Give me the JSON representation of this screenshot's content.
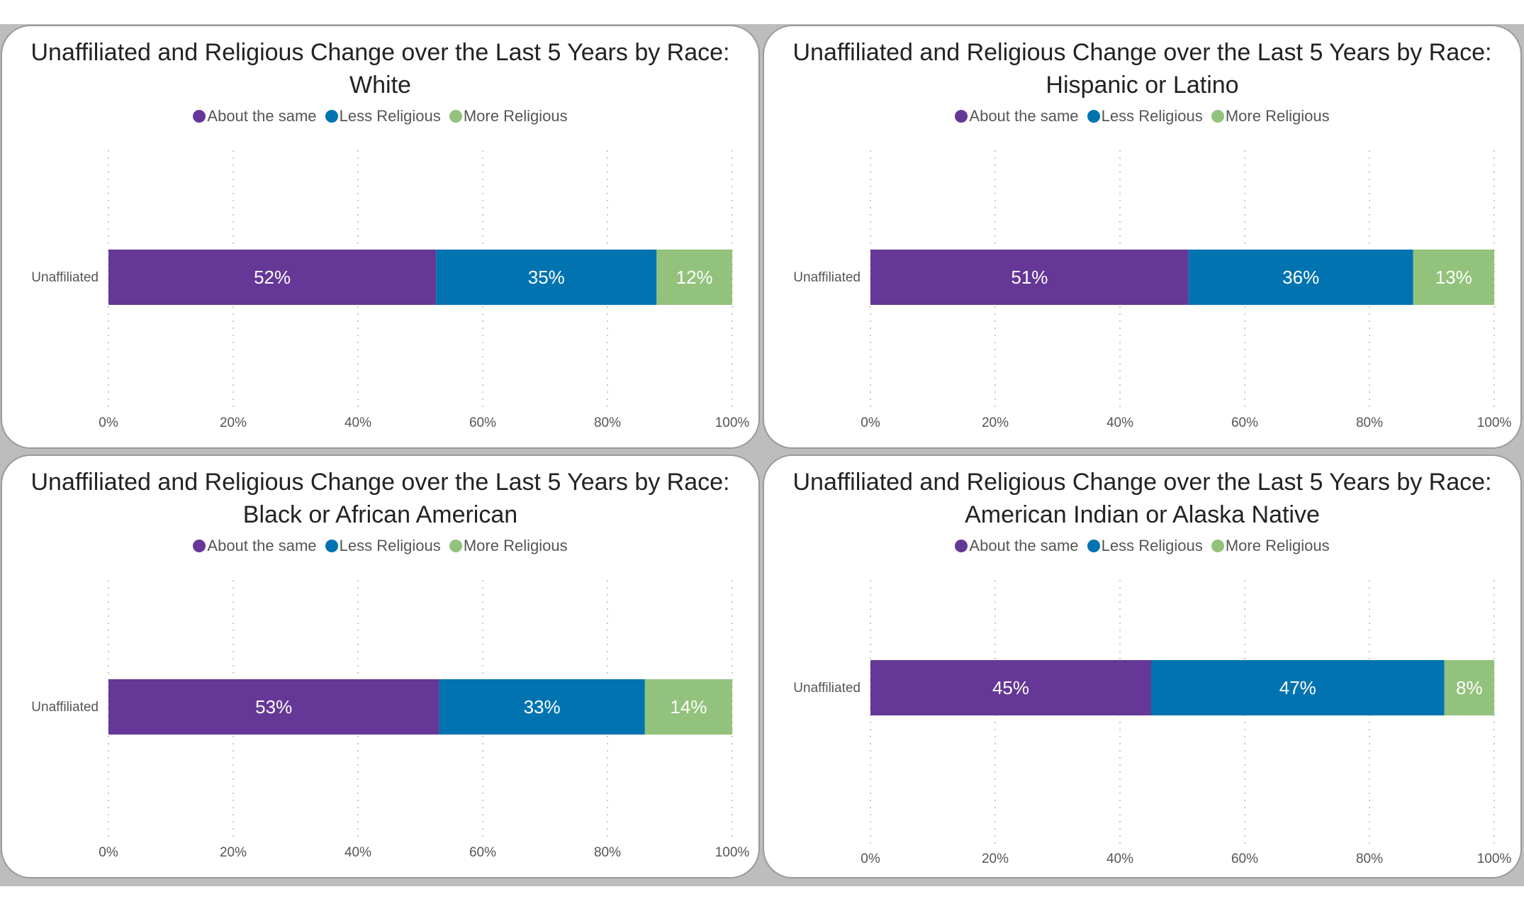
{
  "colors": {
    "about_same": "#653796",
    "less_religious": "#0073b0",
    "more_religious": "#92c27c",
    "grid": "#c8c8c8"
  },
  "chart_data": [
    {
      "type": "bar",
      "orientation": "horizontal",
      "stacked": "percent",
      "title": "Unaffiliated and Religious Change over the Last 5 Years by Race:\nWhite",
      "categories": [
        "Unaffiliated"
      ],
      "series": [
        {
          "name": "About the same",
          "values": [
            52
          ],
          "label": "52%"
        },
        {
          "name": "Less Religious",
          "values": [
            35
          ],
          "label": "35%"
        },
        {
          "name": "More Religious",
          "values": [
            12
          ],
          "label": "12%"
        }
      ],
      "xticks": [
        "0%",
        "20%",
        "40%",
        "60%",
        "80%",
        "100%"
      ],
      "xlim": [
        0,
        100
      ],
      "grid": true,
      "legend": "top"
    },
    {
      "type": "bar",
      "orientation": "horizontal",
      "stacked": "percent",
      "title": "Unaffiliated and Religious Change over the Last 5 Years by Race:\nHispanic or Latino",
      "categories": [
        "Unaffiliated"
      ],
      "series": [
        {
          "name": "About the same",
          "values": [
            51
          ],
          "label": "51%"
        },
        {
          "name": "Less Religious",
          "values": [
            36
          ],
          "label": "36%"
        },
        {
          "name": "More Religious",
          "values": [
            13
          ],
          "label": "13%"
        }
      ],
      "xticks": [
        "0%",
        "20%",
        "40%",
        "60%",
        "80%",
        "100%"
      ],
      "xlim": [
        0,
        100
      ],
      "grid": true,
      "legend": "top"
    },
    {
      "type": "bar",
      "orientation": "horizontal",
      "stacked": "percent",
      "title": "Unaffiliated and Religious Change over the Last 5 Years by Race:\nBlack or African American",
      "categories": [
        "Unaffiliated"
      ],
      "series": [
        {
          "name": "About the same",
          "values": [
            53
          ],
          "label": "53%"
        },
        {
          "name": "Less Religious",
          "values": [
            33
          ],
          "label": "33%"
        },
        {
          "name": "More Religious",
          "values": [
            14
          ],
          "label": "14%"
        }
      ],
      "xticks": [
        "0%",
        "20%",
        "40%",
        "60%",
        "80%",
        "100%"
      ],
      "xlim": [
        0,
        100
      ],
      "grid": true,
      "legend": "top"
    },
    {
      "type": "bar",
      "orientation": "horizontal",
      "stacked": "percent",
      "title": "Unaffiliated and Religious Change over the Last 5 Years by Race:\nAmerican Indian or Alaska Native",
      "categories": [
        "Unaffiliated"
      ],
      "series": [
        {
          "name": "About the same",
          "values": [
            45
          ],
          "label": "45%"
        },
        {
          "name": "Less Religious",
          "values": [
            47
          ],
          "label": "47%"
        },
        {
          "name": "More Religious",
          "values": [
            8
          ],
          "label": "8%"
        }
      ],
      "xticks": [
        "0%",
        "20%",
        "40%",
        "60%",
        "80%",
        "100%"
      ],
      "xlim": [
        0,
        100
      ],
      "grid": true,
      "legend": "top"
    }
  ]
}
